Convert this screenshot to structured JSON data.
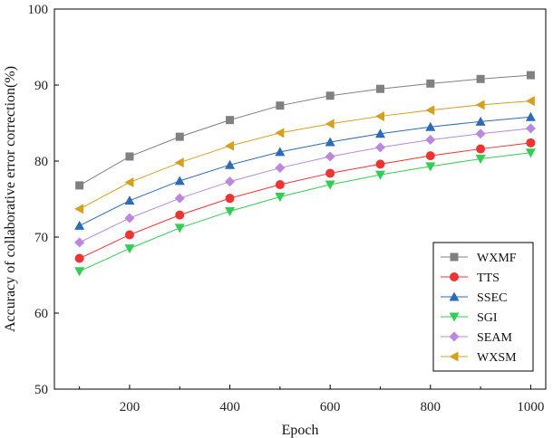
{
  "chart_data": {
    "type": "line",
    "xlabel": "Epoch",
    "ylabel": "Accuracy of collaborative error correction(%)",
    "xlim": [
      50,
      1030
    ],
    "ylim": [
      50,
      100
    ],
    "xticks": [
      200,
      400,
      600,
      800,
      1000
    ],
    "yticks": [
      50,
      60,
      70,
      80,
      90,
      100
    ],
    "x": [
      100,
      200,
      300,
      400,
      500,
      600,
      700,
      800,
      900,
      1000
    ],
    "grid": false,
    "legend_position": "bottom-right",
    "series": [
      {
        "name": "WXMF",
        "color": "#808080",
        "marker": "square",
        "values": [
          76.8,
          80.6,
          83.2,
          85.4,
          87.3,
          88.6,
          89.5,
          90.2,
          90.8,
          91.3
        ]
      },
      {
        "name": "TTS",
        "color": "#ee3333",
        "marker": "circle",
        "values": [
          67.2,
          70.3,
          72.9,
          75.1,
          76.9,
          78.4,
          79.6,
          80.7,
          81.6,
          82.4
        ]
      },
      {
        "name": "SSEC",
        "color": "#2e6bb5",
        "marker": "triangle-up",
        "values": [
          71.5,
          74.8,
          77.4,
          79.5,
          81.2,
          82.5,
          83.6,
          84.5,
          85.2,
          85.8
        ]
      },
      {
        "name": "SGI",
        "color": "#33cc55",
        "marker": "triangle-down",
        "values": [
          65.5,
          68.5,
          71.2,
          73.4,
          75.3,
          76.9,
          78.2,
          79.3,
          80.3,
          81.1
        ]
      },
      {
        "name": "SEAM",
        "color": "#bb88dd",
        "marker": "diamond",
        "values": [
          69.3,
          72.5,
          75.1,
          77.3,
          79.1,
          80.6,
          81.8,
          82.8,
          83.6,
          84.3
        ]
      },
      {
        "name": "WXSM",
        "color": "#d4a020",
        "marker": "triangle-left",
        "values": [
          73.7,
          77.2,
          79.8,
          82.0,
          83.7,
          84.9,
          85.9,
          86.7,
          87.4,
          87.9
        ]
      }
    ]
  }
}
